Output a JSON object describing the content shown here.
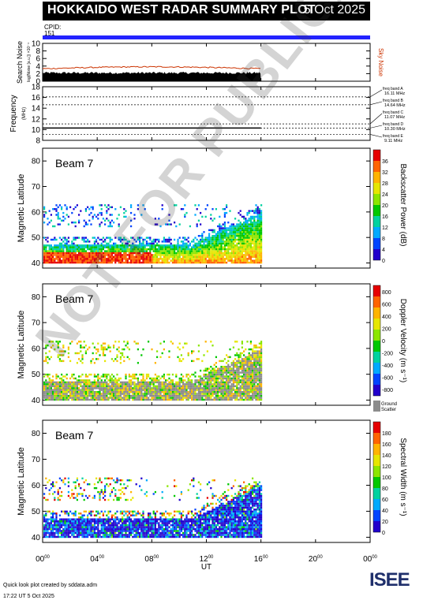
{
  "header": {
    "title": "HOKKAIDO WEST RADAR SUMMARY PLOT",
    "date": "5 Oct 2025",
    "cpid_label": "CPID:",
    "cpid_value": "151",
    "cpid_bar_color": "#2323ff"
  },
  "watermark": "NOT FOR PUBLICATION",
  "footer": {
    "credit": "Quick look plot created by sddata.adm",
    "timestamp": "17:22 UT  5 Oct 2025",
    "logo_text": "ISEE"
  },
  "chart_data": [
    {
      "type": "area",
      "name": "noise",
      "ylabel": "Search Noise",
      "ylabel_units": "log(Noise [a.u.]) ×10⁻⁴",
      "ylim": [
        0,
        10
      ],
      "yticks": [
        "0",
        "2",
        "4",
        "6",
        "8",
        "10"
      ],
      "right_label": "Sky Noise",
      "data_end_hour": 16,
      "search_noise_level": 2.2,
      "sky_noise_level": 3.3,
      "colors": {
        "search": "#000000",
        "sky": "#cc3300"
      }
    },
    {
      "type": "line",
      "name": "frequency",
      "ylabel": "Frequency",
      "yunits": "(MHz)",
      "ylim": [
        8,
        18
      ],
      "yticks": [
        "8",
        "10",
        "12",
        "14",
        "16",
        "18"
      ],
      "bands": [
        {
          "label": "freq band A",
          "value_label": "16.11 MHz",
          "value": 16.11
        },
        {
          "label": "freq band B",
          "value_label": "14.64 MHz",
          "value": 14.64
        },
        {
          "label": "freq band C",
          "value_label": "11.07 MHz",
          "value": 11.07
        },
        {
          "label": "freq band D",
          "value_label": "10.30 MHz",
          "value": 10.3
        },
        {
          "label": "freq band E",
          "value_label": "9.11 MHz",
          "value": 9.11
        }
      ],
      "operating_frequency": 10.3
    },
    {
      "type": "heatmap",
      "name": "power",
      "beam": "Beam  7",
      "ylabel": "Magnetic Latitude",
      "ylim": [
        38,
        85
      ],
      "yticks": [
        "40",
        "50",
        "60",
        "70",
        "80"
      ],
      "colorbar_label": "Backscatter Power (dB)",
      "colorbar_ticks": [
        "0",
        "4",
        "8",
        "12",
        "16",
        "20",
        "24",
        "28",
        "32",
        "36"
      ],
      "colorbar_colors": [
        "#2200cc",
        "#0044ff",
        "#00aaff",
        "#00d2a0",
        "#00c800",
        "#8ce600",
        "#e6e600",
        "#ffb400",
        "#ff6400",
        "#e60000"
      ]
    },
    {
      "type": "heatmap",
      "name": "velocity",
      "beam": "Beam  7",
      "ylabel": "Magnetic Latitude",
      "ylim": [
        38,
        85
      ],
      "yticks": [
        "40",
        "50",
        "60",
        "70",
        "80"
      ],
      "colorbar_label": "Doppler Velocity (m s⁻¹)",
      "colorbar_ticks": [
        "800",
        "600",
        "400",
        "200",
        "0",
        "-200",
        "-400",
        "-600",
        "-800"
      ],
      "colorbar_colors": [
        "#2200cc",
        "#0044ff",
        "#00aaff",
        "#00d2a0",
        "#00c800",
        "#8ce600",
        "#e6e600",
        "#ffb400",
        "#ff6400",
        "#e60000"
      ],
      "ground_scatter_label": "Ground Scatter",
      "ground_scatter_color": "#8c8c8c"
    },
    {
      "type": "heatmap",
      "name": "width",
      "beam": "Beam  7",
      "ylabel": "Magnetic Latitude",
      "ylim": [
        38,
        85
      ],
      "yticks": [
        "40",
        "50",
        "60",
        "70",
        "80"
      ],
      "colorbar_label": "Spectral Width (m s⁻¹)",
      "colorbar_ticks": [
        "0",
        "20",
        "40",
        "60",
        "80",
        "100",
        "120",
        "140",
        "160",
        "180"
      ],
      "colorbar_colors": [
        "#2200cc",
        "#0044ff",
        "#00aaff",
        "#00d2a0",
        "#00c800",
        "#8ce600",
        "#e6e600",
        "#ffb400",
        "#ff6400",
        "#e60000"
      ]
    }
  ],
  "time_axis": {
    "xlabel": "UT",
    "xlim": [
      0,
      24
    ],
    "ticks": [
      {
        "h": "00",
        "m": "00"
      },
      {
        "h": "04",
        "m": "00"
      },
      {
        "h": "08",
        "m": "00"
      },
      {
        "h": "12",
        "m": "00"
      },
      {
        "h": "16",
        "m": "00"
      },
      {
        "h": "20",
        "m": "00"
      },
      {
        "h": "00",
        "m": "00"
      }
    ],
    "data_end_hour": 16
  }
}
